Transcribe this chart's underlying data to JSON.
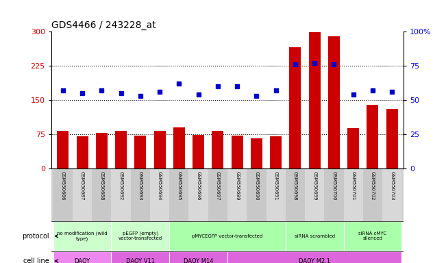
{
  "title": "GDS4466 / 243228_at",
  "samples": [
    "GSM550686",
    "GSM550687",
    "GSM550688",
    "GSM550692",
    "GSM550693",
    "GSM550694",
    "GSM550695",
    "GSM550696",
    "GSM550697",
    "GSM550689",
    "GSM550690",
    "GSM550691",
    "GSM550698",
    "GSM550699",
    "GSM550700",
    "GSM550701",
    "GSM550702",
    "GSM550703"
  ],
  "counts": [
    82,
    70,
    78,
    82,
    72,
    82,
    90,
    73,
    82,
    72,
    65,
    70,
    265,
    298,
    290,
    88,
    140,
    130
  ],
  "percentiles": [
    57,
    55,
    57,
    55,
    53,
    56,
    62,
    54,
    60,
    60,
    53,
    57,
    76,
    77,
    76,
    54,
    57,
    56
  ],
  "bar_color": "#cc0000",
  "dot_color": "#0000cc",
  "left_ylim": [
    0,
    300
  ],
  "right_ylim": [
    0,
    100
  ],
  "left_yticks": [
    0,
    75,
    150,
    225,
    300
  ],
  "right_yticks": [
    0,
    25,
    50,
    75,
    100
  ],
  "right_yticklabels": [
    "0",
    "25",
    "50",
    "75",
    "100%"
  ],
  "hline_values": [
    75,
    150,
    225
  ],
  "protocol_groups": [
    {
      "label": "no modification (wild\ntype)",
      "start": 0,
      "end": 2,
      "color": "#ccffcc"
    },
    {
      "label": "pEGFP (empty)\nvector-transfected",
      "start": 3,
      "end": 5,
      "color": "#ccffcc"
    },
    {
      "label": "pMYCEGFP vector-transfected",
      "start": 6,
      "end": 11,
      "color": "#aaffaa"
    },
    {
      "label": "siRNA scrambled",
      "start": 12,
      "end": 14,
      "color": "#aaffaa"
    },
    {
      "label": "siRNA cMYC\nsilenced",
      "start": 15,
      "end": 17,
      "color": "#aaffaa"
    }
  ],
  "cellline_groups": [
    {
      "label": "DAOY",
      "start": 0,
      "end": 2,
      "color": "#ee88ee"
    },
    {
      "label": "DAOY V11",
      "start": 3,
      "end": 5,
      "color": "#dd66dd"
    },
    {
      "label": "DAOY M14",
      "start": 6,
      "end": 8,
      "color": "#dd66dd"
    },
    {
      "label": "DAOY M2.1",
      "start": 9,
      "end": 17,
      "color": "#dd66dd"
    }
  ],
  "legend_count_color": "#cc0000",
  "legend_pct_color": "#0000cc"
}
